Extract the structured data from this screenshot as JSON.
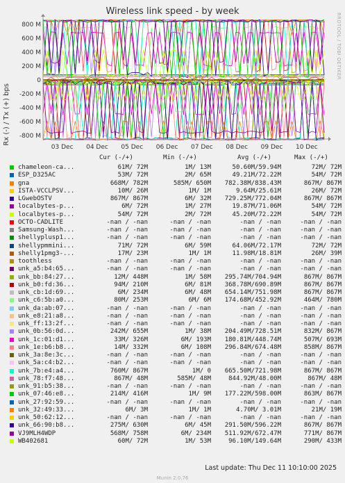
{
  "chart_data": {
    "type": "line",
    "title": "Wireless link speed - by week",
    "side_text": "RRDTOOL / TOBI OETIKER",
    "ylabel": "Rx (-) / Tx (+) bps",
    "ylim": [
      -850,
      850
    ],
    "yticks": [
      -800,
      -600,
      -400,
      -200,
      0,
      200,
      400,
      600,
      800
    ],
    "ytick_labels": [
      "-800 M",
      "-600 M",
      "-400 M",
      "-200 M",
      "0",
      "200 M",
      "400 M",
      "600 M",
      "800 M"
    ],
    "xticks": [
      "03 Dec",
      "04 Dec",
      "05 Dec",
      "06 Dec",
      "07 Dec",
      "08 Dec",
      "09 Dec",
      "10 Dec"
    ],
    "grid": true,
    "legend_columns": [
      "Cur (-/+)",
      "Min (-/+)",
      "Avg (-/+)",
      "Max (-/+)"
    ],
    "series": [
      {
        "name": "chameleon-ca...",
        "color": "#00cc00",
        "cur": "61M/ 72M",
        "min": "1M/ 13M",
        "avg": "50.60M/59.94M",
        "max": "72M/ 72M"
      },
      {
        "name": "ESP_D325AC",
        "color": "#0066b3",
        "cur": "53M/ 72M",
        "min": "2M/ 65M",
        "avg": "49.21M/72.22M",
        "max": "54M/ 72M"
      },
      {
        "name": "gna",
        "color": "#ff8000",
        "cur": "668M/ 782M",
        "min": "585M/ 650M",
        "avg": "782.38M/838.43M",
        "max": "867M/ 867M"
      },
      {
        "name": "ISTA-VCCLPSV...",
        "color": "#ffcc00",
        "cur": "10M/ 26M",
        "min": "1M/ 1M",
        "avg": "9.64M/25.61M",
        "max": "26M/ 72M"
      },
      {
        "name": "LGwebOSTV",
        "color": "#330099",
        "cur": "867M/ 867M",
        "min": "6M/ 32M",
        "avg": "729.25M/772.04M",
        "max": "867M/ 867M"
      },
      {
        "name": "localbytes-p...",
        "color": "#990099",
        "cur": "6M/ 72M",
        "min": "1M/ 27M",
        "avg": "19.87M/71.06M",
        "max": "54M/ 72M"
      },
      {
        "name": "localbytes-p...",
        "color": "#ccff00",
        "cur": "54M/ 72M",
        "min": "2M/ 72M",
        "avg": "45.20M/72.22M",
        "max": "54M/ 72M"
      },
      {
        "name": "OCTO-CADLITE",
        "color": "#ff0000",
        "cur": "-nan / -nan",
        "min": "-nan / -nan",
        "avg": "-nan / -nan",
        "max": "-nan / -nan"
      },
      {
        "name": "Samsung-Wash...",
        "color": "#808080",
        "cur": "-nan / -nan",
        "min": "-nan / -nan",
        "avg": "-nan / -nan",
        "max": "-nan / -nan"
      },
      {
        "name": "shellyplusp1...",
        "color": "#008f00",
        "cur": "-nan / -nan",
        "min": "-nan / -nan",
        "avg": "-nan / -nan",
        "max": "-nan / -nan"
      },
      {
        "name": "shellypmmini...",
        "color": "#00487d",
        "cur": "71M/ 72M",
        "min": "6M/ 59M",
        "avg": "64.06M/72.17M",
        "max": "72M/ 72M"
      },
      {
        "name": "shelly1pmg3-...",
        "color": "#b35a00",
        "cur": "17M/ 23M",
        "min": "1M/ 1M",
        "avg": "11.98M/18.81M",
        "max": "26M/ 39M"
      },
      {
        "name": "toothless",
        "color": "#b38f00",
        "cur": "-nan / -nan",
        "min": "-nan / -nan",
        "avg": "-nan / -nan",
        "max": "-nan / -nan"
      },
      {
        "name": "unk_a5:b4:65...",
        "color": "#6b006b",
        "cur": "-nan / -nan",
        "min": "-nan / -nan",
        "avg": "-nan / -nan",
        "max": "-nan / -nan"
      },
      {
        "name": "unk_bb:84:27...",
        "color": "#8fb300",
        "cur": "12M/ 448M",
        "min": "1M/ 58M",
        "avg": "295.74M/704.94M",
        "max": "867M/ 867M"
      },
      {
        "name": "unk_b0:fd:36...",
        "color": "#b30000",
        "cur": "94M/ 210M",
        "min": "6M/ 81M",
        "avg": "368.78M/690.89M",
        "max": "867M/ 867M"
      },
      {
        "name": "unk_cb:1d:69...",
        "color": "#bebebe",
        "cur": "6M/ 234M",
        "min": "6M/ 48M",
        "avg": "654.14M/751.98M",
        "max": "867M/ 867M"
      },
      {
        "name": "unk_c6:5b:a0...",
        "color": "#80ff80",
        "cur": "80M/ 253M",
        "min": "6M/ 6M",
        "avg": "174.68M/452.92M",
        "max": "464M/ 780M"
      },
      {
        "name": "unk_da:ab:07...",
        "color": "#80c9ff",
        "cur": "-nan / -nan",
        "min": "-nan / -nan",
        "avg": "-nan / -nan",
        "max": "-nan / -nan"
      },
      {
        "name": "unk_e8:21:a8...",
        "color": "#ffc080",
        "cur": "-nan / -nan",
        "min": "-nan / -nan",
        "avg": "-nan / -nan",
        "max": "-nan / -nan"
      },
      {
        "name": "unk_ff:13:2f...",
        "color": "#ffe680",
        "cur": "-nan / -nan",
        "min": "-nan / -nan",
        "avg": "-nan / -nan",
        "max": "-nan / -nan"
      },
      {
        "name": "unk_0b:56:0d...",
        "color": "#aa80ff",
        "cur": "242M/ 655M",
        "min": "1M/ 38M",
        "avg": "204.49M/728.51M",
        "max": "832M/ 867M"
      },
      {
        "name": "unk_1c:01:d1...",
        "color": "#ee00cc",
        "cur": "33M/ 326M",
        "min": "6M/ 193M",
        "avg": "180.81M/448.74M",
        "max": "507M/ 693M"
      },
      {
        "name": "unk_1e:b6:b8...",
        "color": "#ff8080",
        "cur": "14M/ 332M",
        "min": "6M/ 108M",
        "avg": "296.84M/674.48M",
        "max": "858M/ 867M"
      },
      {
        "name": "unk_3a:8e:3c...",
        "color": "#666600",
        "cur": "-nan / -nan",
        "min": "-nan / -nan",
        "avg": "-nan / -nan",
        "max": "-nan / -nan"
      },
      {
        "name": "unk_5a:c4:b2...",
        "color": "#ffbfff",
        "cur": "-nan / -nan",
        "min": "-nan / -nan",
        "avg": "-nan / -nan",
        "max": "-nan / -nan"
      },
      {
        "name": "unk_7b:e4:a4...",
        "color": "#00ffcc",
        "cur": "760M/ 867M",
        "min": "1M/ 0",
        "avg": "665.50M/721.98M",
        "max": "867M/ 867M"
      },
      {
        "name": "unk_78:f7:48...",
        "color": "#cc6699",
        "cur": "867M/ 48M",
        "min": "585M/ 48M",
        "avg": "844.92M/48.00M",
        "max": "867M/ 48M"
      },
      {
        "name": "unk_91:b5:38...",
        "color": "#999900",
        "cur": "-nan / -nan",
        "min": "-nan / -nan",
        "avg": "-nan / -nan",
        "max": "-nan / -nan"
      },
      {
        "name": "unk_07:46:e8...",
        "color": "#00cc00",
        "cur": "214M/ 416M",
        "min": "1M/ 9M",
        "avg": "177.22M/598.00M",
        "max": "863M/ 867M"
      },
      {
        "name": "unk_27:92:59...",
        "color": "#0066b3",
        "cur": "-nan / -nan",
        "min": "-nan / -nan",
        "avg": "-nan / -nan",
        "max": "-nan / -nan"
      },
      {
        "name": "unk_32:49:33...",
        "color": "#ff8000",
        "cur": "6M/ 3M",
        "min": "1M/ 1M",
        "avg": "4.70M/ 3.01M",
        "max": "21M/ 19M"
      },
      {
        "name": "unk_50:62:12...",
        "color": "#ffcc00",
        "cur": "-nan / -nan",
        "min": "-nan / -nan",
        "avg": "-nan / -nan",
        "max": "-nan / -nan"
      },
      {
        "name": "unk_66:90:b8...",
        "color": "#330099",
        "cur": "275M/ 630M",
        "min": "6M/ 45M",
        "avg": "291.50M/596.22M",
        "max": "867M/ 867M"
      },
      {
        "name": "VJ9MLH4WDP",
        "color": "#990099",
        "cur": "568M/ 758M",
        "min": "6M/ 234M",
        "avg": "511.92M/672.47M",
        "max": "771M/ 867M"
      },
      {
        "name": "WB402681",
        "color": "#ccff00",
        "cur": "60M/ 72M",
        "min": "1M/ 53M",
        "avg": "96.10M/149.64M",
        "max": "290M/ 433M"
      }
    ]
  },
  "footer": {
    "last_update": "Last update: Thu Dec 11 10:10:00 2025",
    "generator": "Munin 2.0.76"
  }
}
